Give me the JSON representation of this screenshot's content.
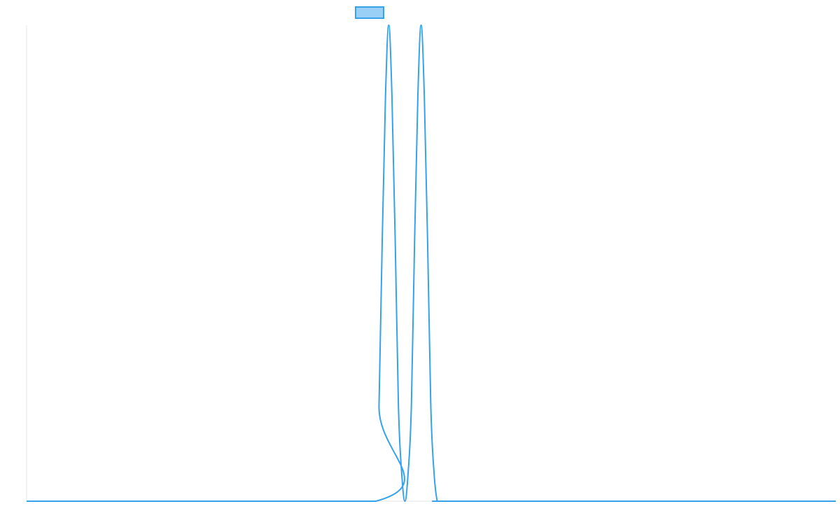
{
  "chart_data": {
    "type": "line",
    "title": "",
    "xlabel": "",
    "ylabel": "",
    "xlim": [
      0,
      1
    ],
    "ylim": [
      0,
      1
    ],
    "grid": false,
    "legend": {
      "placement": "top-center",
      "entries": [
        ""
      ]
    },
    "series": [
      {
        "color": "#36a2eb",
        "legend_fill": "#9ad0f5",
        "x": [
          0,
          0.4315,
          0.4355,
          0.4395,
          0.4435,
          0.4475,
          0.4515,
          0.4555,
          0.4595,
          0.4635,
          0.4675,
          0.4715,
          0.4755,
          0.4795,
          0.4835,
          0.4875,
          0.4915,
          0.4955,
          0.4995,
          0.5035,
          0.5075,
          0.5115,
          0.5155,
          0.5195,
          0.5235,
          0.5275,
          0.5315,
          0.5355,
          0.5395,
          1
        ],
        "y": [
          0,
          0,
          0.2,
          0.55,
          0.85,
          1,
          0.85,
          0.55,
          0.2,
          0.06,
          0,
          0.06,
          0.2,
          0.55,
          0.85,
          1,
          0.85,
          0.55,
          0.2,
          0.06,
          0,
          0,
          0,
          0,
          0,
          0,
          0,
          0,
          0,
          0
        ]
      }
    ]
  }
}
